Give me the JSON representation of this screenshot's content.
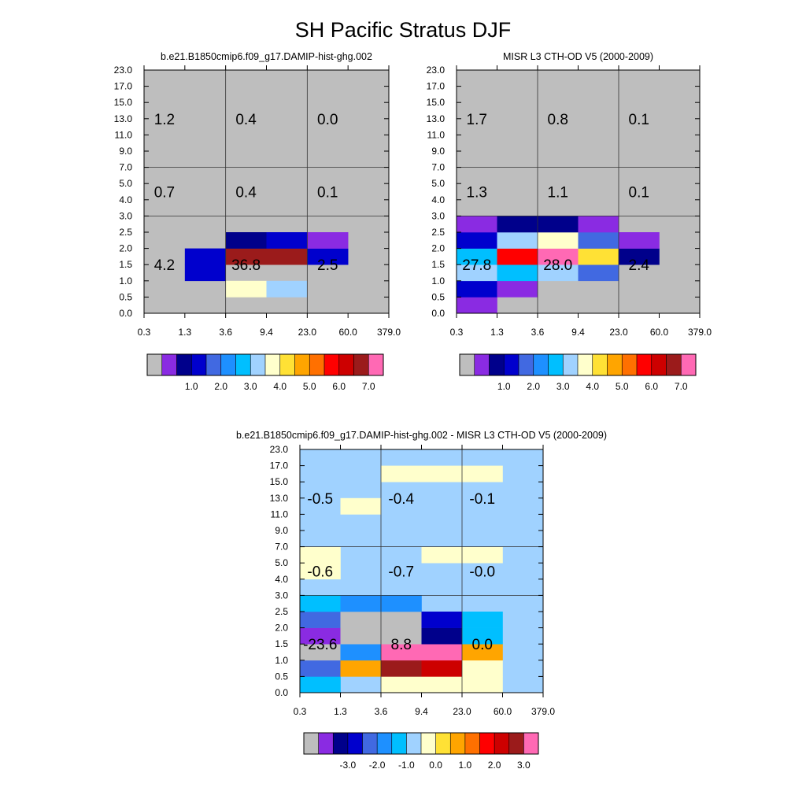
{
  "figure_title": "SH Pacific Stratus DJF",
  "chart_data": [
    {
      "type": "heatmap",
      "title": "b.e21.B1850cmip6.f09_g17.DAMIP-hist-ghg.002",
      "x_tick_labels": [
        "0.3",
        "1.3",
        "3.6",
        "9.4",
        "23.0",
        "60.0",
        "379.0"
      ],
      "y_tick_labels": [
        "0.0",
        "0.5",
        "1.0",
        "1.5",
        "2.0",
        "2.5",
        "3.0",
        "4.0",
        "5.0",
        "7.0",
        "9.0",
        "11.0",
        "13.0",
        "15.0",
        "17.0",
        "23.0"
      ],
      "cells": [
        {
          "col": 1,
          "row": 2,
          "level": 3
        },
        {
          "col": 1,
          "row": 3,
          "level": 3
        },
        {
          "col": 2,
          "row": 1,
          "level": 8
        },
        {
          "col": 2,
          "row": 3,
          "level": 14
        },
        {
          "col": 2,
          "row": 4,
          "level": 2
        },
        {
          "col": 3,
          "row": 1,
          "level": 7
        },
        {
          "col": 3,
          "row": 3,
          "level": 14
        },
        {
          "col": 3,
          "row": 4,
          "level": 3
        },
        {
          "col": 4,
          "row": 3,
          "level": 3
        },
        {
          "col": 4,
          "row": 4,
          "level": 1
        }
      ],
      "totals": [
        {
          "label": "4.2",
          "col_center": 0.5,
          "row_center": 3.0
        },
        {
          "label": "36.8",
          "col_center": 2.5,
          "row_center": 3.0
        },
        {
          "label": "2.5",
          "col_center": 4.5,
          "row_center": 3.0
        },
        {
          "label": "0.7",
          "col_center": 0.5,
          "row_center": 7.5
        },
        {
          "label": "0.4",
          "col_center": 2.5,
          "row_center": 7.5
        },
        {
          "label": "0.1",
          "col_center": 4.5,
          "row_center": 7.5
        },
        {
          "label": "1.2",
          "col_center": 0.5,
          "row_center": 12.0
        },
        {
          "label": "0.4",
          "col_center": 2.5,
          "row_center": 12.0
        },
        {
          "label": "0.0",
          "col_center": 4.5,
          "row_center": 12.0
        }
      ],
      "colorbar": {
        "colors": [
          "#bebebe",
          "#8a2be2",
          "#00008b",
          "#0000cd",
          "#4169e1",
          "#1e90ff",
          "#00bfff",
          "#a0d2ff",
          "#ffffcc",
          "#ffe135",
          "#ffa500",
          "#ff7000",
          "#ff0000",
          "#cd0000",
          "#9b1b1b",
          "#ff69b4"
        ],
        "labels": [
          "1.0",
          "2.0",
          "3.0",
          "4.0",
          "5.0",
          "6.0",
          "7.0"
        ],
        "label_start": 2
      }
    },
    {
      "type": "heatmap",
      "title": "MISR L3 CTH-OD V5 (2000-2009)",
      "x_tick_labels": [
        "0.3",
        "1.3",
        "3.6",
        "9.4",
        "23.0",
        "60.0",
        "379.0"
      ],
      "y_tick_labels": [
        "0.0",
        "0.5",
        "1.0",
        "1.5",
        "2.0",
        "2.5",
        "3.0",
        "4.0",
        "5.0",
        "7.0",
        "9.0",
        "11.0",
        "13.0",
        "15.0",
        "17.0",
        "23.0"
      ],
      "cells": [
        {
          "col": 0,
          "row": 0,
          "level": 1
        },
        {
          "col": 0,
          "row": 1,
          "level": 3
        },
        {
          "col": 0,
          "row": 2,
          "level": 7
        },
        {
          "col": 0,
          "row": 3,
          "level": 6
        },
        {
          "col": 0,
          "row": 4,
          "level": 3
        },
        {
          "col": 0,
          "row": 5,
          "level": 1
        },
        {
          "col": 1,
          "row": 1,
          "level": 1
        },
        {
          "col": 1,
          "row": 2,
          "level": 6
        },
        {
          "col": 1,
          "row": 3,
          "level": 12
        },
        {
          "col": 1,
          "row": 4,
          "level": 7
        },
        {
          "col": 1,
          "row": 5,
          "level": 2
        },
        {
          "col": 2,
          "row": 2,
          "level": 7
        },
        {
          "col": 2,
          "row": 3,
          "level": 15
        },
        {
          "col": 2,
          "row": 4,
          "level": 8
        },
        {
          "col": 2,
          "row": 5,
          "level": 2
        },
        {
          "col": 3,
          "row": 2,
          "level": 4
        },
        {
          "col": 3,
          "row": 3,
          "level": 9
        },
        {
          "col": 3,
          "row": 4,
          "level": 4
        },
        {
          "col": 3,
          "row": 5,
          "level": 1
        },
        {
          "col": 4,
          "row": 3,
          "level": 2
        },
        {
          "col": 4,
          "row": 4,
          "level": 1
        }
      ],
      "totals": [
        {
          "label": "27.8",
          "col_center": 0.5,
          "row_center": 3.0
        },
        {
          "label": "28.0",
          "col_center": 2.5,
          "row_center": 3.0
        },
        {
          "label": "2.4",
          "col_center": 4.5,
          "row_center": 3.0
        },
        {
          "label": "1.3",
          "col_center": 0.5,
          "row_center": 7.5
        },
        {
          "label": "1.1",
          "col_center": 2.5,
          "row_center": 7.5
        },
        {
          "label": "0.1",
          "col_center": 4.5,
          "row_center": 7.5
        },
        {
          "label": "1.7",
          "col_center": 0.5,
          "row_center": 12.0
        },
        {
          "label": "0.8",
          "col_center": 2.5,
          "row_center": 12.0
        },
        {
          "label": "0.1",
          "col_center": 4.5,
          "row_center": 12.0
        }
      ],
      "colorbar": {
        "colors": [
          "#bebebe",
          "#8a2be2",
          "#00008b",
          "#0000cd",
          "#4169e1",
          "#1e90ff",
          "#00bfff",
          "#a0d2ff",
          "#ffffcc",
          "#ffe135",
          "#ffa500",
          "#ff7000",
          "#ff0000",
          "#cd0000",
          "#9b1b1b",
          "#ff69b4"
        ],
        "labels": [
          "1.0",
          "2.0",
          "3.0",
          "4.0",
          "5.0",
          "6.0",
          "7.0"
        ],
        "label_start": 2
      }
    },
    {
      "type": "heatmap",
      "title": "b.e21.B1850cmip6.f09_g17.DAMIP-hist-ghg.002 - MISR L3 CTH-OD V5 (2000-2009)",
      "x_tick_labels": [
        "0.3",
        "1.3",
        "3.6",
        "9.4",
        "23.0",
        "60.0",
        "379.0"
      ],
      "y_tick_labels": [
        "0.0",
        "0.5",
        "1.0",
        "1.5",
        "2.0",
        "2.5",
        "3.0",
        "4.0",
        "5.0",
        "7.0",
        "9.0",
        "11.0",
        "13.0",
        "15.0",
        "17.0",
        "23.0"
      ],
      "background_level": 7,
      "cells": [
        {
          "col": 0,
          "row": 0,
          "level": 6
        },
        {
          "col": 0,
          "row": 1,
          "level": 4
        },
        {
          "col": 0,
          "row": 2,
          "level": 0
        },
        {
          "col": 0,
          "row": 3,
          "level": 1
        },
        {
          "col": 0,
          "row": 4,
          "level": 4
        },
        {
          "col": 0,
          "row": 5,
          "level": 6
        },
        {
          "col": 0,
          "row": 7,
          "level": 8
        },
        {
          "col": 0,
          "row": 8,
          "level": 8
        },
        {
          "col": 1,
          "row": 1,
          "level": 10
        },
        {
          "col": 1,
          "row": 2,
          "level": 5
        },
        {
          "col": 1,
          "row": 3,
          "level": 0
        },
        {
          "col": 1,
          "row": 4,
          "level": 0
        },
        {
          "col": 1,
          "row": 5,
          "level": 5
        },
        {
          "col": 1,
          "row": 11,
          "level": 8
        },
        {
          "col": 2,
          "row": 0,
          "level": 8
        },
        {
          "col": 2,
          "row": 1,
          "level": 14
        },
        {
          "col": 2,
          "row": 2,
          "level": 15
        },
        {
          "col": 2,
          "row": 3,
          "level": 0
        },
        {
          "col": 2,
          "row": 4,
          "level": 0
        },
        {
          "col": 2,
          "row": 5,
          "level": 5
        },
        {
          "col": 2,
          "row": 13,
          "level": 8
        },
        {
          "col": 3,
          "row": 0,
          "level": 8
        },
        {
          "col": 3,
          "row": 1,
          "level": 13
        },
        {
          "col": 3,
          "row": 2,
          "level": 15
        },
        {
          "col": 3,
          "row": 3,
          "level": 2
        },
        {
          "col": 3,
          "row": 4,
          "level": 3
        },
        {
          "col": 3,
          "row": 8,
          "level": 8
        },
        {
          "col": 3,
          "row": 13,
          "level": 8
        },
        {
          "col": 4,
          "row": 0,
          "level": 8
        },
        {
          "col": 4,
          "row": 1,
          "level": 8
        },
        {
          "col": 4,
          "row": 2,
          "level": 10
        },
        {
          "col": 4,
          "row": 3,
          "level": 6
        },
        {
          "col": 4,
          "row": 4,
          "level": 6
        },
        {
          "col": 4,
          "row": 8,
          "level": 8
        },
        {
          "col": 4,
          "row": 13,
          "level": 8
        }
      ],
      "totals": [
        {
          "label": "-23.6",
          "col_center": 0.5,
          "row_center": 3.0
        },
        {
          "label": "8.8",
          "col_center": 2.5,
          "row_center": 3.0
        },
        {
          "label": "0.0",
          "col_center": 4.5,
          "row_center": 3.0
        },
        {
          "label": "-0.6",
          "col_center": 0.5,
          "row_center": 7.5
        },
        {
          "label": "-0.7",
          "col_center": 2.5,
          "row_center": 7.5
        },
        {
          "label": "-0.0",
          "col_center": 4.5,
          "row_center": 7.5
        },
        {
          "label": "-0.5",
          "col_center": 0.5,
          "row_center": 12.0
        },
        {
          "label": "-0.4",
          "col_center": 2.5,
          "row_center": 12.0
        },
        {
          "label": "-0.1",
          "col_center": 4.5,
          "row_center": 12.0
        }
      ],
      "colorbar": {
        "colors": [
          "#bebebe",
          "#8a2be2",
          "#00008b",
          "#0000cd",
          "#4169e1",
          "#1e90ff",
          "#00bfff",
          "#a0d2ff",
          "#ffffcc",
          "#ffe135",
          "#ffa500",
          "#ff7000",
          "#ff0000",
          "#cd0000",
          "#9b1b1b",
          "#ff69b4"
        ],
        "labels": [
          "-3.0",
          "-2.0",
          "-1.0",
          "0.0",
          "1.0",
          "2.0",
          "3.0"
        ],
        "label_start": 2
      }
    }
  ]
}
